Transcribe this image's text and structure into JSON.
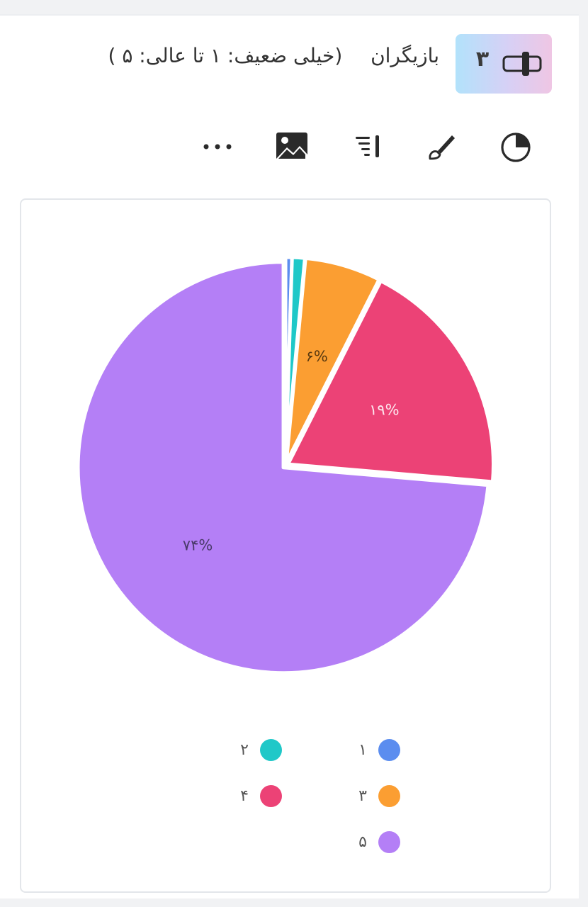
{
  "question": {
    "number": "۳",
    "title": "بازیگران",
    "scale_note": "(خیلی ضعیف: ۱ تا عالی: ۵ )"
  },
  "toolbar": [
    {
      "icon": "pie-chart-icon"
    },
    {
      "icon": "brush-icon"
    },
    {
      "icon": "sort-lines-icon"
    },
    {
      "icon": "image-icon"
    },
    {
      "icon": "more-dots-icon"
    }
  ],
  "colors": {
    "1": "#5b8def",
    "2": "#1fc8c8",
    "3": "#fb9e32",
    "4": "#ec4276",
    "5": "#b47ff6"
  },
  "chart_data": {
    "type": "pie",
    "categories": [
      "۱",
      "۲",
      "۳",
      "۴",
      "۵"
    ],
    "values": [
      0.5,
      1,
      6,
      19,
      74
    ],
    "labels": [
      "",
      "",
      "۶%",
      "۱۹%",
      "۷۴%"
    ],
    "legend_position": "bottom"
  }
}
